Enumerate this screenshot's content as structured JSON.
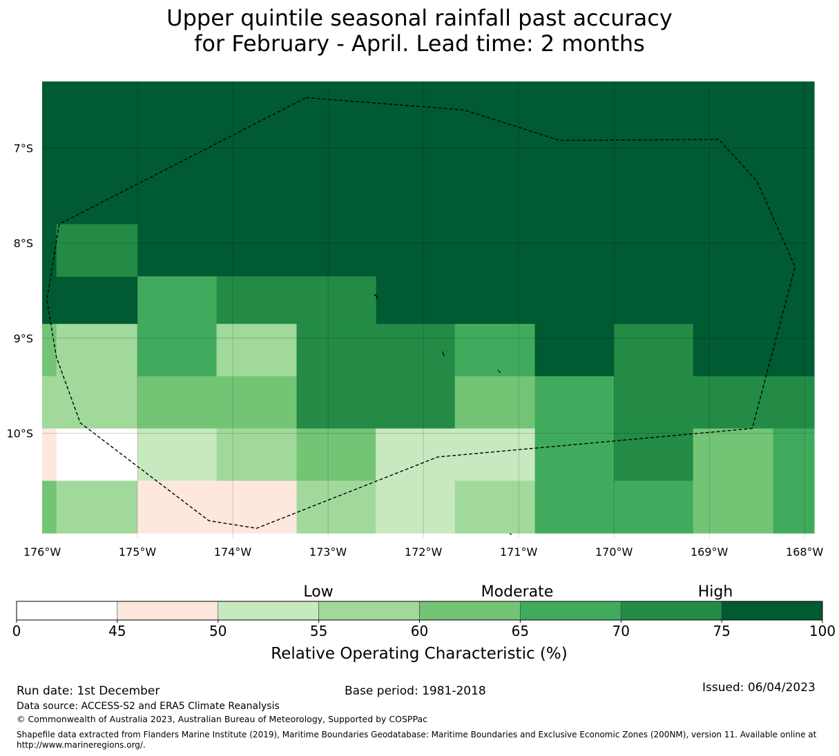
{
  "title": {
    "line1": "Upper quintile seasonal rainfall past accuracy",
    "line2": "for February - April. Lead time: 2 months"
  },
  "map": {
    "lon_range": [
      -176,
      -167.9
    ],
    "lat_range": [
      -11.1,
      -6.3
    ],
    "x_ticks": [
      {
        "value": -176,
        "label": "176°W"
      },
      {
        "value": -175,
        "label": "175°W"
      },
      {
        "value": -174,
        "label": "174°W"
      },
      {
        "value": -173,
        "label": "173°W"
      },
      {
        "value": -172,
        "label": "172°W"
      },
      {
        "value": -171,
        "label": "171°W"
      },
      {
        "value": -170,
        "label": "170°W"
      },
      {
        "value": -169,
        "label": "169°W"
      },
      {
        "value": -168,
        "label": "168°W"
      }
    ],
    "y_ticks": [
      {
        "value": -7,
        "label": "7°S"
      },
      {
        "value": -8,
        "label": "8°S"
      },
      {
        "value": -9,
        "label": "9°S"
      },
      {
        "value": -10,
        "label": "10°S"
      }
    ],
    "bin_colors": [
      "#ffffff",
      "#fee8de",
      "#c7e9c0",
      "#a1d99b",
      "#74c476",
      "#41ab5d",
      "#238b45",
      "#005a32"
    ],
    "cells": [
      {
        "lon": [
          -176,
          -167.9
        ],
        "lat": [
          -8.85,
          -6.3
        ],
        "bin": 7
      },
      {
        "lon": [
          -175.85,
          -175.0
        ],
        "lat": [
          -8.35,
          -7.8
        ],
        "bin": 6
      },
      {
        "lon": [
          -175.0,
          -174.17
        ],
        "lat": [
          -8.85,
          -8.35
        ],
        "bin": 5
      },
      {
        "lon": [
          -174.17,
          -172.5
        ],
        "lat": [
          -8.85,
          -8.35
        ],
        "bin": 6
      },
      {
        "lon": [
          -176,
          -175.85
        ],
        "lat": [
          -9.4,
          -8.85
        ],
        "bin": 4
      },
      {
        "lon": [
          -175.85,
          -175.0
        ],
        "lat": [
          -9.4,
          -8.85
        ],
        "bin": 3
      },
      {
        "lon": [
          -175.0,
          -174.17
        ],
        "lat": [
          -9.4,
          -8.85
        ],
        "bin": 5
      },
      {
        "lon": [
          -174.17,
          -173.33
        ],
        "lat": [
          -9.4,
          -8.85
        ],
        "bin": 3
      },
      {
        "lon": [
          -173.33,
          -171.67
        ],
        "lat": [
          -9.4,
          -8.85
        ],
        "bin": 6
      },
      {
        "lon": [
          -171.67,
          -170.83
        ],
        "lat": [
          -9.4,
          -8.85
        ],
        "bin": 5
      },
      {
        "lon": [
          -170.83,
          -170.0
        ],
        "lat": [
          -9.4,
          -8.85
        ],
        "bin": 7
      },
      {
        "lon": [
          -170.0,
          -169.17
        ],
        "lat": [
          -9.4,
          -8.85
        ],
        "bin": 6
      },
      {
        "lon": [
          -169.17,
          -167.9
        ],
        "lat": [
          -9.4,
          -8.85
        ],
        "bin": 7
      },
      {
        "lon": [
          -176,
          -175.0
        ],
        "lat": [
          -9.95,
          -9.4
        ],
        "bin": 3
      },
      {
        "lon": [
          -175.0,
          -173.33
        ],
        "lat": [
          -9.95,
          -9.4
        ],
        "bin": 4
      },
      {
        "lon": [
          -173.33,
          -171.67
        ],
        "lat": [
          -9.95,
          -9.4
        ],
        "bin": 6
      },
      {
        "lon": [
          -171.67,
          -170.83
        ],
        "lat": [
          -9.95,
          -9.4
        ],
        "bin": 4
      },
      {
        "lon": [
          -170.83,
          -170.0
        ],
        "lat": [
          -9.95,
          -9.4
        ],
        "bin": 5
      },
      {
        "lon": [
          -170.0,
          -167.9
        ],
        "lat": [
          -9.95,
          -9.4
        ],
        "bin": 6
      },
      {
        "lon": [
          -176,
          -175.85
        ],
        "lat": [
          -10.5,
          -9.95
        ],
        "bin": 1
      },
      {
        "lon": [
          -175.85,
          -175.0
        ],
        "lat": [
          -10.5,
          -9.95
        ],
        "bin": 0
      },
      {
        "lon": [
          -175.0,
          -174.17
        ],
        "lat": [
          -10.5,
          -9.95
        ],
        "bin": 2
      },
      {
        "lon": [
          -174.17,
          -173.33
        ],
        "lat": [
          -10.5,
          -9.95
        ],
        "bin": 3
      },
      {
        "lon": [
          -173.33,
          -172.5
        ],
        "lat": [
          -10.5,
          -9.95
        ],
        "bin": 4
      },
      {
        "lon": [
          -172.5,
          -170.83
        ],
        "lat": [
          -10.5,
          -9.95
        ],
        "bin": 2
      },
      {
        "lon": [
          -170.83,
          -170.0
        ],
        "lat": [
          -10.5,
          -9.95
        ],
        "bin": 5
      },
      {
        "lon": [
          -170.0,
          -169.17
        ],
        "lat": [
          -10.5,
          -9.95
        ],
        "bin": 6
      },
      {
        "lon": [
          -169.17,
          -168.33
        ],
        "lat": [
          -10.5,
          -9.95
        ],
        "bin": 4
      },
      {
        "lon": [
          -168.33,
          -167.9
        ],
        "lat": [
          -10.5,
          -9.95
        ],
        "bin": 5
      },
      {
        "lon": [
          -176,
          -175.85
        ],
        "lat": [
          -11.05,
          -10.5
        ],
        "bin": 4
      },
      {
        "lon": [
          -175.85,
          -175.0
        ],
        "lat": [
          -11.05,
          -10.5
        ],
        "bin": 3
      },
      {
        "lon": [
          -175.0,
          -173.33
        ],
        "lat": [
          -11.05,
          -10.5
        ],
        "bin": 1
      },
      {
        "lon": [
          -173.33,
          -172.5
        ],
        "lat": [
          -11.05,
          -10.5
        ],
        "bin": 3
      },
      {
        "lon": [
          -172.5,
          -171.67
        ],
        "lat": [
          -11.05,
          -10.5
        ],
        "bin": 2
      },
      {
        "lon": [
          -171.67,
          -170.83
        ],
        "lat": [
          -11.05,
          -10.5
        ],
        "bin": 3
      },
      {
        "lon": [
          -170.83,
          -169.17
        ],
        "lat": [
          -11.05,
          -10.5
        ],
        "bin": 5
      },
      {
        "lon": [
          -169.17,
          -168.33
        ],
        "lat": [
          -11.05,
          -10.5
        ],
        "bin": 4
      },
      {
        "lon": [
          -168.33,
          -167.9
        ],
        "lat": [
          -11.05,
          -10.5
        ],
        "bin": 5
      }
    ],
    "eez_boundary": [
      [
        -173.23,
        -6.47
      ],
      [
        -171.57,
        -6.6
      ],
      [
        -170.57,
        -6.92
      ],
      [
        -168.9,
        -6.91
      ],
      [
        -168.5,
        -7.35
      ],
      [
        -168.1,
        -8.25
      ],
      [
        -168.55,
        -9.95
      ],
      [
        -171.85,
        -10.25
      ],
      [
        -173.75,
        -11.0
      ],
      [
        -174.25,
        -10.92
      ],
      [
        -175.6,
        -9.89
      ],
      [
        -175.85,
        -9.2
      ],
      [
        -175.95,
        -8.6
      ],
      [
        -175.82,
        -7.8
      ]
    ]
  },
  "colorbar": {
    "bounds": [
      0,
      45,
      50,
      55,
      60,
      65,
      70,
      75,
      100
    ],
    "tick_labels": [
      "0",
      "45",
      "50",
      "55",
      "60",
      "65",
      "70",
      "75",
      "100"
    ],
    "category_labels": {
      "low": "Low",
      "moderate": "Moderate",
      "high": "High"
    },
    "title": "Relative Operating Characteristic (%)"
  },
  "footer": {
    "run_date": "Run date: 1st December",
    "base_period": "Base period: 1981-2018",
    "issued": "Issued: 06/04/2023",
    "data_source": "Data source: ACCESS-S2 and ERA5 Climate Reanalysis",
    "copyright": "© Commonwealth of Australia 2023, Australian Bureau of Meteorology, Supported by COSPPac",
    "shapefile": "Shapefile data extracted from Flanders Marine Institute (2019), Maritime Boundaries Geodatabase: Maritime Boundaries and Exclusive Economic Zones (200NM), version 11. Available online at http://www.marineregions.org/."
  }
}
